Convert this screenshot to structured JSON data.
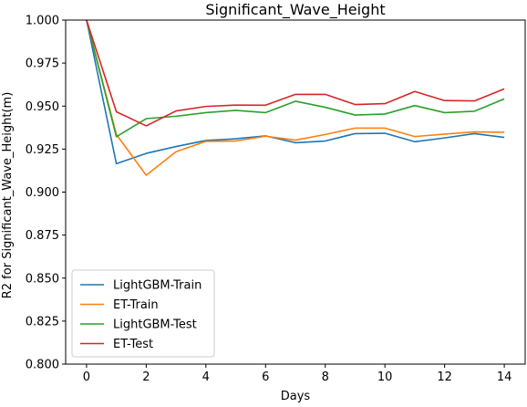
{
  "chart_data": {
    "type": "line",
    "title": "Significant_Wave_Height",
    "xlabel": "Days",
    "ylabel": "R2 for Significant_Wave_Height(m)",
    "xlim": [
      -0.7,
      14.7
    ],
    "ylim": [
      0.8,
      1.0
    ],
    "xticks": [
      0,
      2,
      4,
      6,
      8,
      10,
      12,
      14
    ],
    "yticks": [
      0.8,
      0.825,
      0.85,
      0.875,
      0.9,
      0.925,
      0.95,
      0.975,
      1.0
    ],
    "xtick_labels": [
      "0",
      "2",
      "4",
      "6",
      "8",
      "10",
      "12",
      "14"
    ],
    "ytick_labels": [
      "0.800",
      "0.825",
      "0.850",
      "0.875",
      "0.900",
      "0.925",
      "0.950",
      "0.975",
      "1.000"
    ],
    "grid": false,
    "legend_position": "lower-left",
    "x": [
      0,
      1,
      2,
      3,
      4,
      5,
      6,
      7,
      8,
      9,
      10,
      11,
      12,
      13,
      14
    ],
    "series": [
      {
        "name": "LightGBM-Train",
        "color": "#1f77b4",
        "values": [
          1.0,
          0.9165,
          0.9225,
          0.9265,
          0.93,
          0.931,
          0.9327,
          0.9287,
          0.9297,
          0.934,
          0.9342,
          0.9293,
          0.9315,
          0.934,
          0.9318
        ]
      },
      {
        "name": "ET-Train",
        "color": "#ff7f0e",
        "values": [
          1.0,
          0.9335,
          0.9098,
          0.9235,
          0.9295,
          0.9297,
          0.9325,
          0.9302,
          0.9335,
          0.9372,
          0.9372,
          0.9323,
          0.9337,
          0.935,
          0.9348
        ]
      },
      {
        "name": "LightGBM-Test",
        "color": "#2ca02c",
        "values": [
          1.0,
          0.9322,
          0.9427,
          0.9441,
          0.9462,
          0.9475,
          0.9462,
          0.9528,
          0.9493,
          0.9448,
          0.9454,
          0.9503,
          0.9462,
          0.947,
          0.9542
        ]
      },
      {
        "name": "ET-Test",
        "color": "#d62728",
        "values": [
          1.0,
          0.9467,
          0.9385,
          0.9472,
          0.9498,
          0.9506,
          0.9505,
          0.9568,
          0.9568,
          0.9509,
          0.9514,
          0.9585,
          0.9532,
          0.953,
          0.96
        ]
      }
    ]
  }
}
